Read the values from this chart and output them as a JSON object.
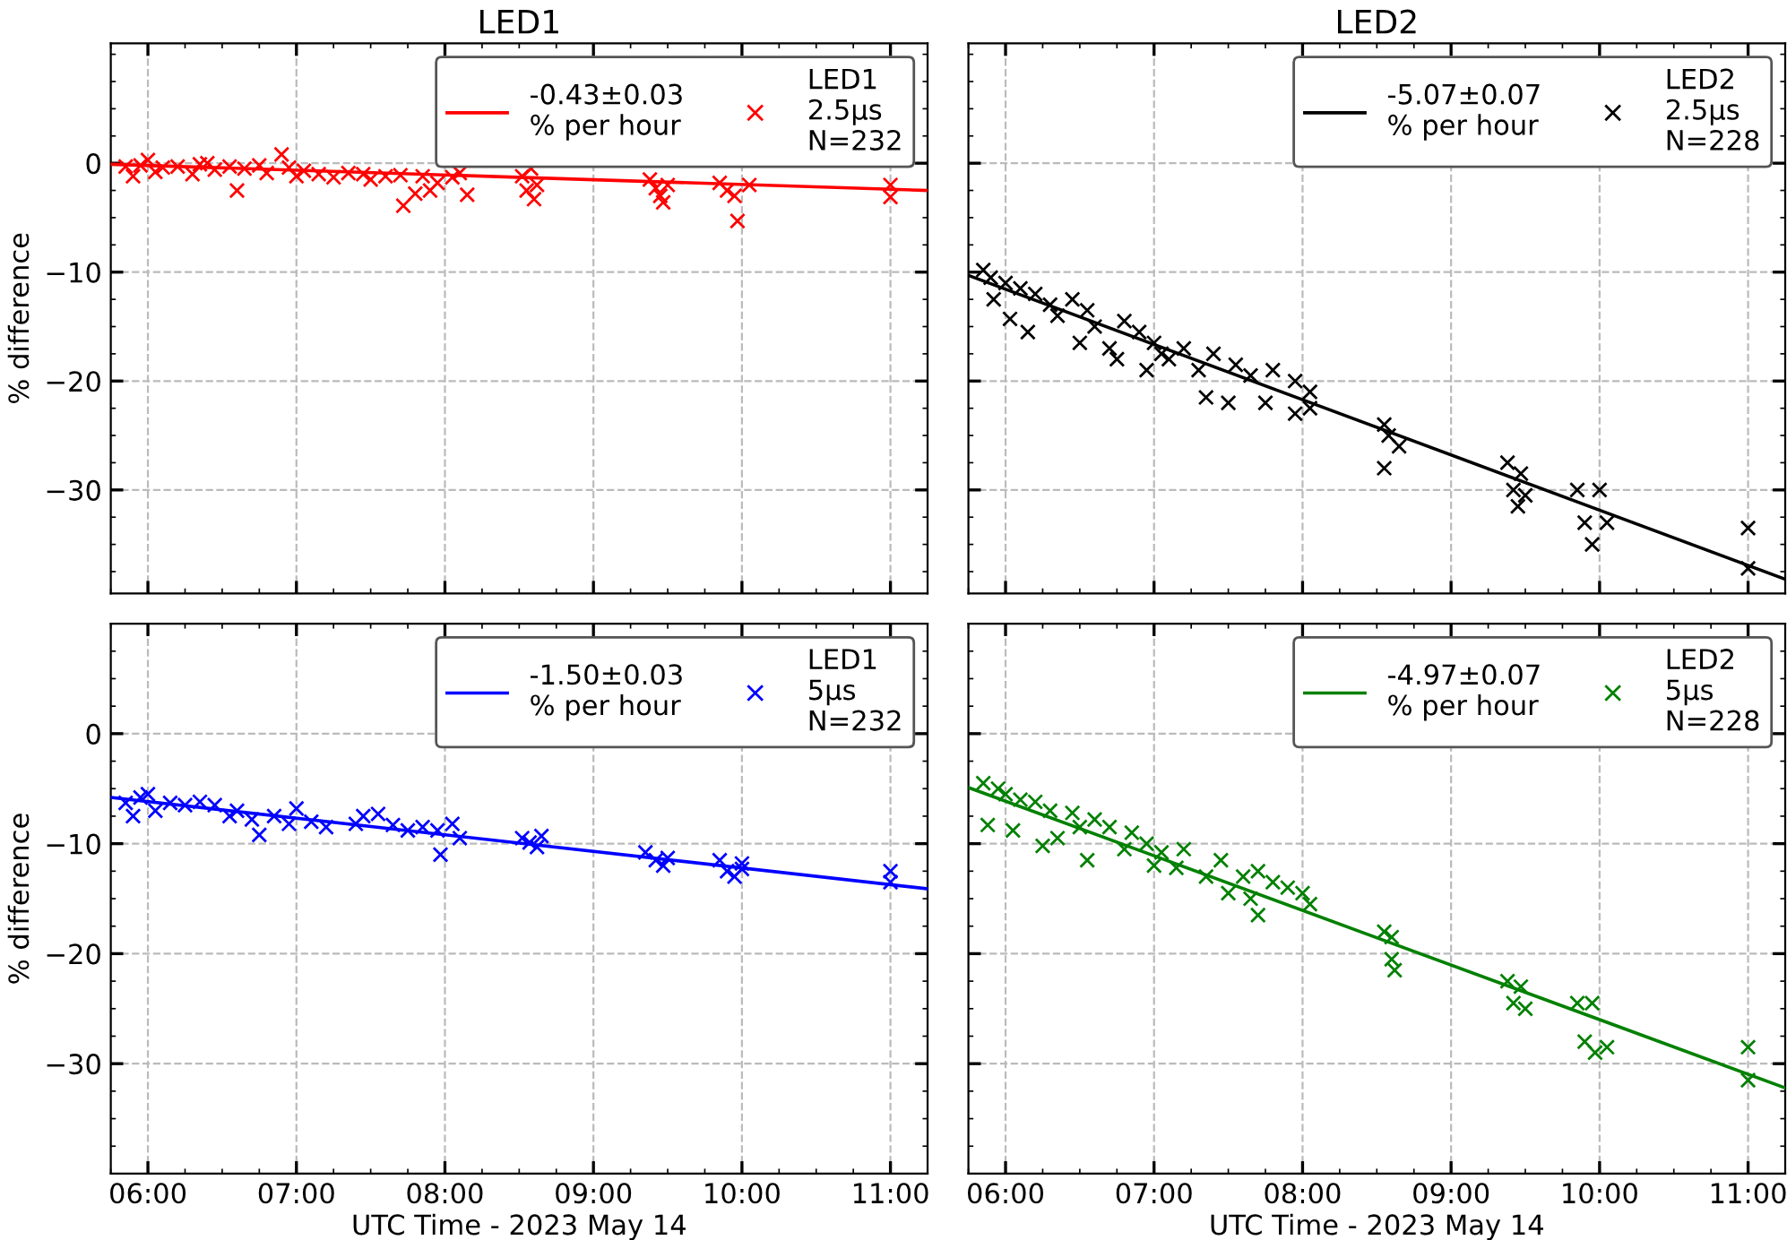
{
  "chart_data": [
    {
      "type": "scatter",
      "title": "LED1",
      "ylabel": "% difference",
      "xlim": [
        5.75,
        11.25
      ],
      "ylim": [
        -39.5,
        11
      ],
      "xticks": [
        {
          "value": 6,
          "label": null
        },
        {
          "value": 7,
          "label": null
        },
        {
          "value": 8,
          "label": null
        },
        {
          "value": 9,
          "label": null
        },
        {
          "value": 10,
          "label": null
        },
        {
          "value": 11,
          "label": null
        }
      ],
      "yticks": [
        {
          "value": -30,
          "label": "−30"
        },
        {
          "value": -20,
          "label": "−20"
        },
        {
          "value": -10,
          "label": "−10"
        },
        0
      ],
      "tick_labels": "y",
      "grid": true,
      "legend": "top right",
      "series": [
        {
          "type": "line",
          "name": "-0.43±0.03\n% per hour",
          "color": "#ff0000",
          "x": [
            5.75,
            11.25
          ],
          "values": [
            -0.1,
            -2.5
          ]
        },
        {
          "marker": "cross",
          "name": "LED1\n2.5μs\nN=232",
          "color": "#ff0000",
          "x": [
            5.85,
            5.9,
            5.95,
            6.0,
            6.05,
            6.1,
            6.2,
            6.3,
            6.35,
            6.4,
            6.45,
            6.55,
            6.6,
            6.65,
            6.75,
            6.8,
            6.9,
            6.95,
            7.0,
            7.05,
            7.15,
            7.25,
            7.35,
            7.45,
            7.5,
            7.6,
            7.7,
            7.72,
            7.8,
            7.85,
            7.9,
            7.95,
            8.05,
            8.1,
            8.15,
            8.52,
            8.55,
            8.58,
            8.6,
            8.62,
            9.38,
            9.42,
            9.45,
            9.47,
            9.5,
            9.85,
            9.9,
            9.95,
            9.97,
            10.05,
            11.0,
            11.0
          ],
          "values": [
            -0.3,
            -1.2,
            -0.2,
            0.3,
            -0.8,
            -0.4,
            -0.3,
            -1.0,
            -0.1,
            0.0,
            -0.6,
            -0.3,
            -2.5,
            -0.5,
            -0.2,
            -0.9,
            0.8,
            -0.4,
            -1.2,
            -0.7,
            -1.0,
            -1.3,
            -0.9,
            -1.0,
            -1.5,
            -1.2,
            -1.1,
            -3.9,
            -2.8,
            -1.2,
            -2.5,
            -1.8,
            -1.3,
            -0.9,
            -2.9,
            -1.2,
            -2.5,
            -0.5,
            -3.3,
            -2.0,
            -1.5,
            -2.3,
            -3.0,
            -3.6,
            -2.0,
            -1.8,
            -2.5,
            -3.0,
            -5.3,
            -2.0,
            -2.0,
            -3.1
          ]
        }
      ]
    },
    {
      "type": "scatter",
      "title": "LED2",
      "xlim": [
        5.75,
        11.25
      ],
      "ylim": [
        -39.5,
        11
      ],
      "xticks": [
        {
          "value": 6,
          "label": null
        },
        {
          "value": 7,
          "label": null
        },
        {
          "value": 8,
          "label": null
        },
        {
          "value": 9,
          "label": null
        },
        {
          "value": 10,
          "label": null
        },
        {
          "value": 11,
          "label": null
        }
      ],
      "yticks": [
        {
          "value": -30,
          "label": null
        },
        {
          "value": -20,
          "label": null
        },
        {
          "value": -10,
          "label": null
        },
        {
          "value": 0,
          "label": null
        }
      ],
      "tick_labels": false,
      "grid": true,
      "legend": "top right",
      "series": [
        {
          "type": "line",
          "name": "-5.07±0.07\n% per hour",
          "color": "#000000",
          "x": [
            5.75,
            11.25
          ],
          "values": [
            -10.3,
            -38.2
          ]
        },
        {
          "marker": "cross",
          "name": "LED2\n2.5μs\nN=228",
          "color": "#000000",
          "x": [
            5.85,
            5.9,
            5.92,
            6.0,
            6.03,
            6.1,
            6.15,
            6.2,
            6.3,
            6.35,
            6.45,
            6.5,
            6.55,
            6.6,
            6.7,
            6.75,
            6.8,
            6.9,
            6.95,
            7.0,
            7.05,
            7.1,
            7.2,
            7.3,
            7.35,
            7.4,
            7.5,
            7.55,
            7.65,
            7.75,
            7.8,
            7.95,
            7.95,
            8.05,
            8.05,
            8.55,
            8.58,
            8.55,
            8.65,
            9.38,
            9.42,
            9.45,
            9.47,
            9.5,
            9.85,
            9.9,
            9.95,
            10.0,
            10.05,
            11.0,
            11.0
          ],
          "values": [
            -9.8,
            -10.5,
            -12.5,
            -11,
            -14.3,
            -11.5,
            -15.5,
            -12,
            -13,
            -14,
            -12.5,
            -16.5,
            -13.5,
            -15,
            -17,
            -18,
            -14.5,
            -15.5,
            -19,
            -16.5,
            -17.5,
            -18,
            -17,
            -19,
            -21.5,
            -17.5,
            -22,
            -18.5,
            -19.5,
            -22,
            -19,
            -20,
            -23,
            -21,
            -22.5,
            -24,
            -25,
            -28,
            -26,
            -27.5,
            -30,
            -31.5,
            -28.5,
            -30.5,
            -30,
            -33,
            -35,
            -30,
            -33,
            -33.5,
            -37.2
          ]
        }
      ]
    },
    {
      "type": "scatter",
      "xlabel": "UTC Time - 2023 May 14",
      "ylabel": "% difference",
      "xlim": [
        5.75,
        11.25
      ],
      "ylim": [
        -40,
        10
      ],
      "xticks": [
        {
          "value": 6,
          "label": "06:00"
        },
        {
          "value": 7,
          "label": "07:00"
        },
        {
          "value": 8,
          "label": "08:00"
        },
        {
          "value": 9,
          "label": "09:00"
        },
        {
          "value": 10,
          "label": "10:00"
        },
        {
          "value": 11,
          "label": "11:00"
        }
      ],
      "yticks": [
        {
          "value": -30,
          "label": "−30"
        },
        {
          "value": -20,
          "label": "−20"
        },
        {
          "value": -10,
          "label": "−10"
        },
        0
      ],
      "grid": true,
      "legend": "top right",
      "series": [
        {
          "type": "line",
          "name": "-1.50±0.03\n% per hour",
          "color": "#0000ff",
          "x": [
            5.75,
            11.25
          ],
          "values": [
            -5.8,
            -14.1
          ]
        },
        {
          "marker": "cross",
          "name": "LED1\n5μs\nN=232",
          "color": "#0000ff",
          "x": [
            5.85,
            5.9,
            5.95,
            6.0,
            6.05,
            6.15,
            6.25,
            6.35,
            6.45,
            6.55,
            6.6,
            6.7,
            6.75,
            6.85,
            6.95,
            7.0,
            7.1,
            7.2,
            7.4,
            7.45,
            7.55,
            7.65,
            7.75,
            7.85,
            7.95,
            7.97,
            8.05,
            8.1,
            8.52,
            8.57,
            8.62,
            8.65,
            9.35,
            9.42,
            9.47,
            9.5,
            9.85,
            9.9,
            9.95,
            10.0,
            10.0,
            11.0,
            11.0
          ],
          "values": [
            -6.3,
            -7.5,
            -5.8,
            -5.5,
            -7,
            -6.3,
            -6.5,
            -6.2,
            -6.5,
            -7.5,
            -7,
            -7.8,
            -9.2,
            -7.5,
            -8.2,
            -6.8,
            -8,
            -8.5,
            -8.2,
            -7.5,
            -7.3,
            -8.3,
            -8.8,
            -8.5,
            -8.8,
            -11,
            -8.2,
            -9.5,
            -9.5,
            -9.9,
            -10.3,
            -9.3,
            -10.8,
            -11.5,
            -12.0,
            -11.3,
            -11.5,
            -12.5,
            -13,
            -11.8,
            -12.3,
            -12.5,
            -13.5
          ]
        }
      ]
    },
    {
      "type": "scatter",
      "xlabel": "UTC Time - 2023 May 14",
      "xlim": [
        5.75,
        11.25
      ],
      "ylim": [
        -40,
        10
      ],
      "xticks": [
        {
          "value": 6,
          "label": "06:00"
        },
        {
          "value": 7,
          "label": "07:00"
        },
        {
          "value": 8,
          "label": "08:00"
        },
        {
          "value": 9,
          "label": "09:00"
        },
        {
          "value": 10,
          "label": "10:00"
        },
        {
          "value": 11,
          "label": "11:00"
        }
      ],
      "yticks": [
        {
          "value": -30,
          "label": null
        },
        {
          "value": -20,
          "label": null
        },
        {
          "value": -10,
          "label": null
        },
        {
          "value": 0,
          "label": null
        }
      ],
      "tick_labels": "x",
      "grid": true,
      "legend": "top right",
      "series": [
        {
          "type": "line",
          "name": "-4.97±0.07\n% per hour",
          "color": "#008000",
          "x": [
            5.75,
            11.25
          ],
          "values": [
            -4.9,
            -32.2
          ]
        },
        {
          "marker": "cross",
          "name": "LED2\n5μs\nN=228",
          "color": "#008000",
          "x": [
            5.85,
            5.88,
            5.95,
            6.0,
            6.05,
            6.1,
            6.2,
            6.25,
            6.3,
            6.35,
            6.45,
            6.5,
            6.55,
            6.6,
            6.7,
            6.8,
            6.85,
            6.95,
            7.0,
            7.05,
            7.15,
            7.2,
            7.35,
            7.45,
            7.5,
            7.6,
            7.65,
            7.7,
            7.7,
            7.8,
            7.9,
            8.0,
            8.05,
            8.55,
            8.6,
            8.6,
            8.62,
            9.38,
            9.42,
            9.47,
            9.5,
            9.85,
            9.9,
            9.95,
            9.97,
            10.05,
            11.0,
            11.0
          ],
          "values": [
            -4.5,
            -8.3,
            -5,
            -5.5,
            -8.8,
            -6,
            -6.2,
            -10.2,
            -7,
            -9.5,
            -7.2,
            -8.5,
            -11.5,
            -7.8,
            -8.5,
            -10.5,
            -9,
            -10,
            -12,
            -10.8,
            -12.2,
            -10.5,
            -13,
            -11.5,
            -14.5,
            -13,
            -15,
            -12.5,
            -16.5,
            -13.5,
            -14,
            -14.5,
            -15.5,
            -18,
            -18.5,
            -20.5,
            -21.5,
            -22.5,
            -24.5,
            -23,
            -25,
            -24.5,
            -28,
            -24.5,
            -29,
            -28.5,
            -28.5,
            -31.5
          ]
        }
      ]
    }
  ]
}
